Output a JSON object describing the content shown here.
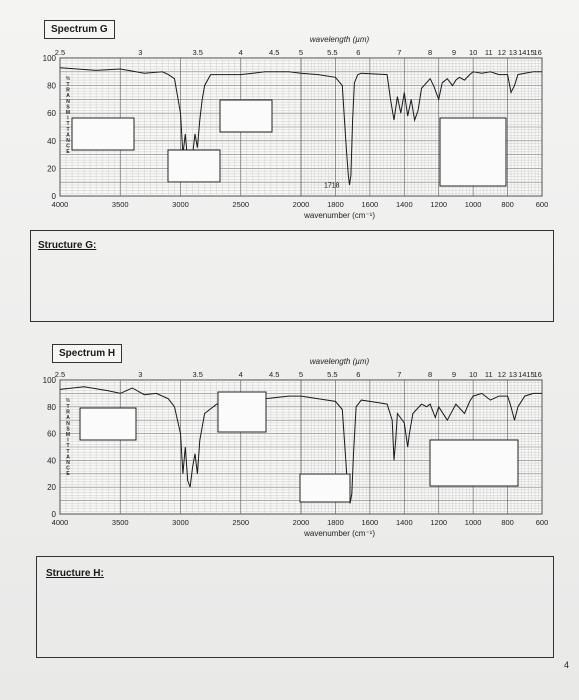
{
  "page_number": "4",
  "structure_g_label": "Structure G:",
  "structure_h_label": "Structure H:",
  "chart_data": [
    {
      "type": "line",
      "title": "Spectrum G",
      "xlabel": "wavenumber (cm⁻¹)",
      "ylabel": "% TRANSMITTANCE",
      "x2label": "wavelength (µm)",
      "ylim": [
        0,
        100
      ],
      "x_ticks": [
        "4000",
        "3500",
        "3000",
        "2500",
        "2000",
        "1800",
        "1600",
        "1400",
        "1200",
        "1000",
        "800",
        "600"
      ],
      "y_ticks": [
        "0",
        "20",
        "40",
        "60",
        "80",
        "100"
      ],
      "top_ticks": [
        "2.5",
        "3",
        "3.5",
        "4",
        "4.5",
        "5",
        "5.5",
        "6",
        "7",
        "8",
        "9",
        "10",
        "11",
        "12",
        "13",
        "14",
        "15",
        "16"
      ],
      "annotation": "1718",
      "series": [
        {
          "x": [
            4000,
            3700,
            3500,
            3300,
            3150,
            3100,
            3050,
            3000,
            2980,
            2960,
            2940,
            2920,
            2900,
            2880,
            2860,
            2840,
            2820,
            2800,
            2750,
            2500,
            2300,
            2100,
            2000,
            1900,
            1800,
            1760,
            1740,
            1725,
            1718,
            1710,
            1700,
            1690,
            1670,
            1650,
            1500,
            1480,
            1460,
            1440,
            1420,
            1400,
            1380,
            1360,
            1340,
            1320,
            1300,
            1250,
            1230,
            1200,
            1180,
            1150,
            1120,
            1100,
            1080,
            1050,
            1020,
            1000,
            950,
            900,
            850,
            800,
            780,
            760,
            740,
            700,
            650,
            600
          ],
          "y": [
            93,
            91,
            92,
            89,
            90,
            88,
            85,
            60,
            30,
            45,
            25,
            20,
            30,
            45,
            35,
            55,
            70,
            80,
            88,
            88,
            90,
            90,
            89,
            88,
            86,
            80,
            40,
            15,
            8,
            15,
            55,
            82,
            88,
            89,
            88,
            70,
            55,
            72,
            60,
            75,
            58,
            70,
            55,
            62,
            78,
            85,
            80,
            70,
            82,
            85,
            80,
            84,
            86,
            84,
            88,
            90,
            89,
            90,
            88,
            88,
            75,
            80,
            88,
            89,
            90,
            90
          ]
        }
      ]
    },
    {
      "type": "line",
      "title": "Spectrum H",
      "xlabel": "wavenumber (cm⁻¹)",
      "ylabel": "% TRANSMITTANCE",
      "x2label": "wavelength (µm)",
      "ylim": [
        0,
        100
      ],
      "x_ticks": [
        "4000",
        "3500",
        "3000",
        "2500",
        "2000",
        "1800",
        "1600",
        "1400",
        "1200",
        "1000",
        "800",
        "600"
      ],
      "y_ticks": [
        "0",
        "20",
        "40",
        "60",
        "80",
        "100"
      ],
      "top_ticks": [
        "2.5",
        "3",
        "3.5",
        "4",
        "4.5",
        "5",
        "5.5",
        "6",
        "7",
        "8",
        "9",
        "10",
        "11",
        "12",
        "13",
        "14",
        "15",
        "16"
      ],
      "annotation": "",
      "series": [
        {
          "x": [
            4000,
            3800,
            3600,
            3500,
            3400,
            3300,
            3200,
            3100,
            3050,
            3000,
            2980,
            2960,
            2940,
            2920,
            2900,
            2880,
            2860,
            2840,
            2800,
            2700,
            2500,
            2300,
            2100,
            2000,
            1900,
            1800,
            1760,
            1740,
            1725,
            1715,
            1705,
            1695,
            1680,
            1650,
            1600,
            1500,
            1470,
            1460,
            1450,
            1440,
            1400,
            1380,
            1370,
            1350,
            1300,
            1270,
            1250,
            1220,
            1200,
            1150,
            1100,
            1050,
            1020,
            1000,
            950,
            900,
            850,
            800,
            780,
            760,
            740,
            700,
            650,
            600
          ],
          "y": [
            93,
            95,
            92,
            90,
            94,
            89,
            90,
            86,
            80,
            60,
            30,
            50,
            25,
            20,
            35,
            45,
            30,
            55,
            75,
            82,
            85,
            86,
            88,
            88,
            86,
            84,
            78,
            40,
            12,
            8,
            15,
            45,
            80,
            85,
            84,
            82,
            70,
            40,
            55,
            75,
            68,
            50,
            60,
            75,
            82,
            80,
            82,
            72,
            80,
            70,
            82,
            75,
            84,
            88,
            90,
            85,
            88,
            88,
            80,
            70,
            80,
            88,
            90,
            90
          ]
        }
      ]
    }
  ]
}
